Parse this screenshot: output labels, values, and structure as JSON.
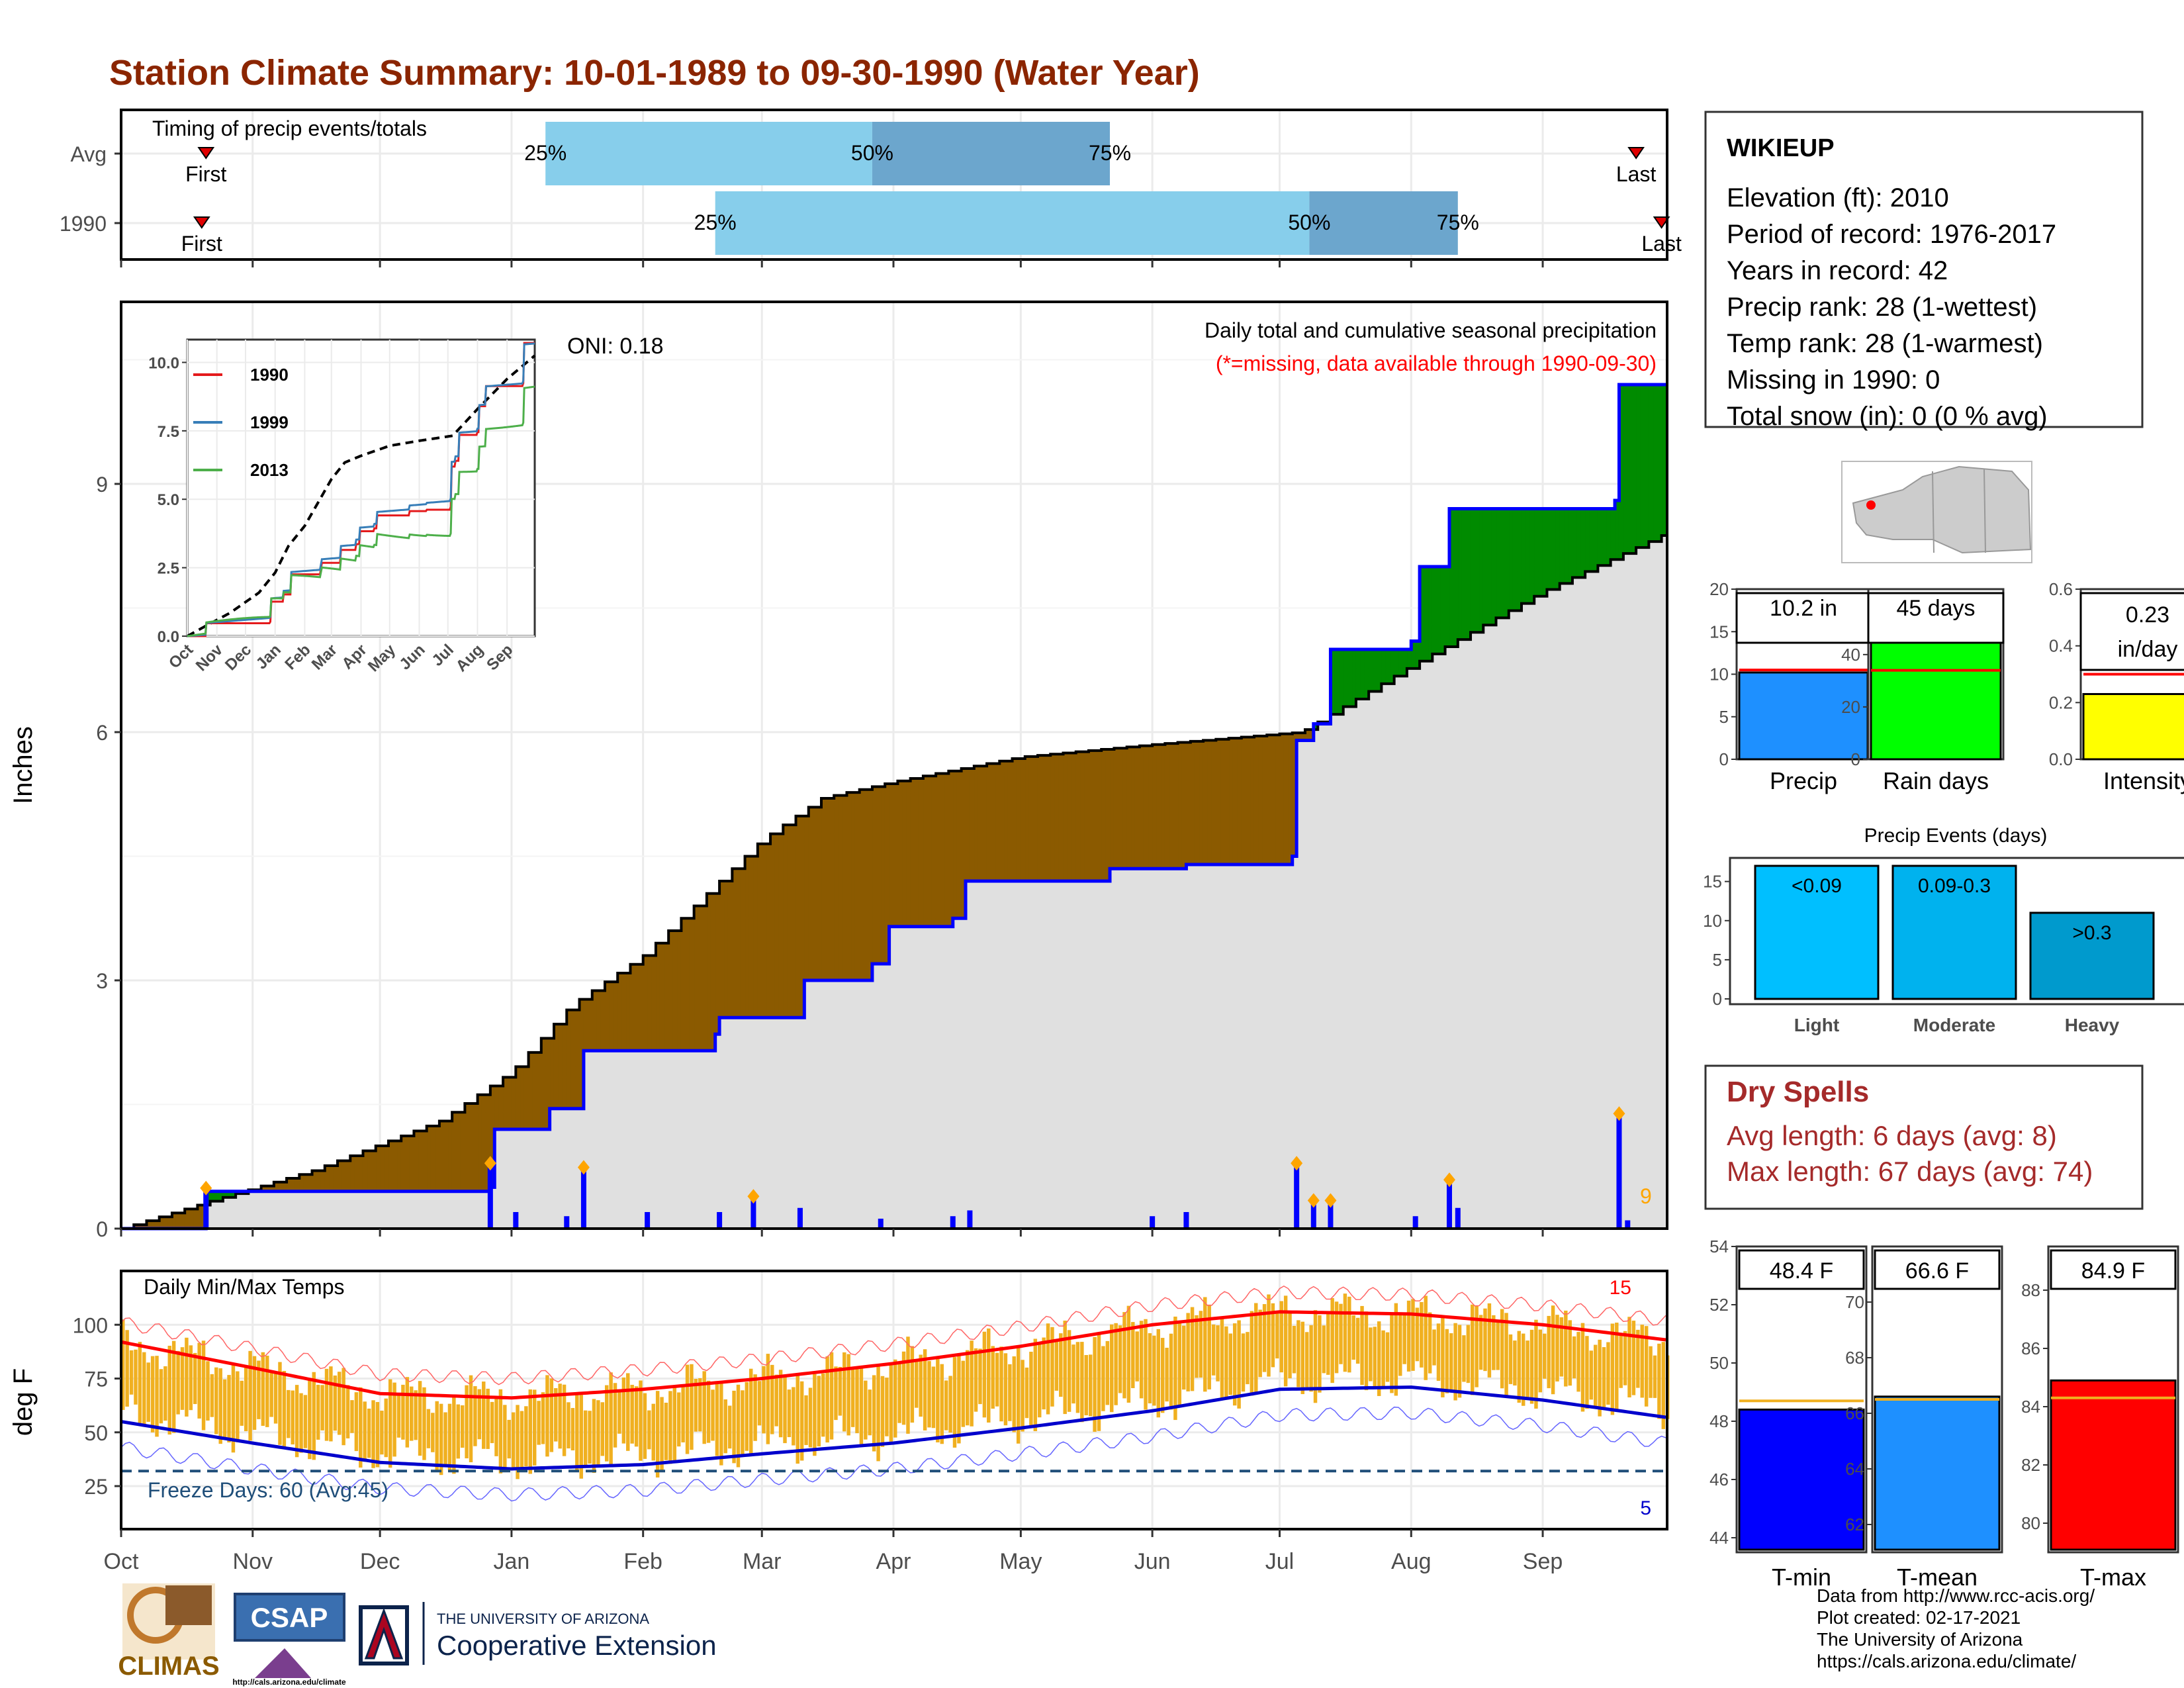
{
  "title": "Station Climate Summary: 10-01-1989 to 09-30-1990 (Water Year)",
  "colors": {
    "title": "#8B2500",
    "deficit": "#8B5A00",
    "surplus": "#008B00",
    "avg_fill": "#E0E0E0",
    "precip_line": "#0000FF",
    "temp_bar": "#F0B020",
    "tmax": "#FF0000",
    "tmin": "#0000CC",
    "light_blue": "#87CEEB",
    "mid_blue": "#6CA6CD",
    "dry_spell": "#A52A2A"
  },
  "timing": {
    "title": "Timing of precip events/totals",
    "rows": [
      {
        "label": "Avg",
        "first_label": "First",
        "last_label": "Last",
        "first_date": "1989-10-21",
        "last_date": "1990-09-23",
        "p25_label": "25%",
        "p50_label": "50%",
        "p75_label": "75%",
        "p25_date": "1990-01-09",
        "p50_date": "1990-03-27",
        "p75_date": "1990-05-22"
      },
      {
        "label": "1990",
        "first_label": "First",
        "last_label": "Last",
        "first_date": "1989-10-20",
        "last_date": "1990-09-29",
        "p25_date": "1990-02-18",
        "p50_date": "1990-07-08",
        "p75_date": "1990-08-12",
        "p25_label": "25%",
        "p50_label": "50%",
        "p75_label": "75%"
      }
    ]
  },
  "station": {
    "name": "WIKIEUP",
    "lines": [
      "Elevation (ft): 2010",
      "Period of record: 1976-2017",
      "Years in record: 42",
      "Precip rank: 28 (1-wettest)",
      "Temp rank: 28 (1-warmest)",
      "Missing in 1990: 0",
      "Total snow (in): 0 (0 % avg)"
    ]
  },
  "precip_panel": {
    "ylabel": "Inches",
    "oni": "ONI: 0.18",
    "legend_title": "Daily total and cumulative seasonal precipitation",
    "legend_note": "(*=missing, data available through 1990-09-30)",
    "count_label": "9",
    "yticks": [
      "0",
      "3",
      "6",
      "9"
    ]
  },
  "inset": {
    "yticks": [
      "0.0",
      "2.5",
      "5.0",
      "7.5",
      "10.0"
    ],
    "xticks": [
      "Oct",
      "Nov",
      "Dec",
      "Jan",
      "Feb",
      "Mar",
      "Apr",
      "May",
      "Jun",
      "Jul",
      "Aug",
      "Sep"
    ],
    "legend": [
      {
        "name": "1990",
        "color": "#E41A1C"
      },
      {
        "name": "1999",
        "color": "#377EB8"
      },
      {
        "name": "2013",
        "color": "#4DAF4A"
      }
    ]
  },
  "summary_bars": [
    {
      "label": "Precip",
      "value_label": "10.2 in",
      "value": 10.2,
      "avg": 10.5,
      "ymax": 20,
      "yticks": [
        "0",
        "5",
        "10",
        "15",
        "20"
      ],
      "color": "#1E90FF"
    },
    {
      "label": "Rain days",
      "value_label": "45 days",
      "value": 45,
      "avg": 34,
      "ymax": 65,
      "yticks": [
        "0",
        "20",
        "40",
        "60"
      ],
      "color": "#00FF00"
    },
    {
      "label": "Intensity",
      "value_label_1": "0.23",
      "value_label_2": "in/day",
      "value": 0.23,
      "avg": 0.3,
      "ymax": 0.6,
      "yticks": [
        "0.0",
        "0.2",
        "0.4",
        "0.6"
      ],
      "color": "#FFFF00"
    }
  ],
  "events": {
    "title": "Precip Events (days)",
    "yticks": [
      "0",
      "5",
      "10",
      "15"
    ],
    "bars": [
      {
        "label": "Light",
        "range": "<0.09",
        "value": 17,
        "color": "#00BFFF"
      },
      {
        "label": "Moderate",
        "range": "0.09-0.3",
        "value": 17,
        "color": "#00B2EE"
      },
      {
        "label": "Heavy",
        "range": ">0.3",
        "value": 11,
        "color": "#009ACD"
      }
    ]
  },
  "dry_spells": {
    "title": "Dry Spells",
    "avg": "Avg length: 6 days (avg: 8)",
    "max": "Max length: 67 days (avg: 74)"
  },
  "temp_panel": {
    "title": "Daily Min/Max Temps",
    "ylabel": "deg F",
    "freeze": "Freeze Days: 60 (Avg:45)",
    "hot_count": "15",
    "cold_count": "5",
    "yticks": [
      "25",
      "50",
      "75",
      "100"
    ],
    "months": [
      "Oct",
      "Nov",
      "Dec",
      "Jan",
      "Feb",
      "Mar",
      "Apr",
      "May",
      "Jun",
      "Jul",
      "Aug",
      "Sep"
    ]
  },
  "temp_bars": [
    {
      "label": "T-min",
      "value_label": "48.4 F",
      "value": 48.4,
      "avg": 48.7,
      "ymin": 43.5,
      "ymax": 54,
      "yticks": [
        "44",
        "46",
        "48",
        "50",
        "52",
        "54"
      ],
      "color": "#0000FF"
    },
    {
      "label": "T-mean",
      "value_label": "66.6 F",
      "value": 66.6,
      "avg": 66.5,
      "ymin": 61,
      "ymax": 72,
      "yticks": [
        "62",
        "64",
        "66",
        "68",
        "70"
      ],
      "color": "#1E90FF"
    },
    {
      "label": "T-max",
      "value_label": "84.9 F",
      "value": 84.9,
      "avg": 84.3,
      "ymin": 79,
      "ymax": 89.5,
      "yticks": [
        "80",
        "82",
        "84",
        "86",
        "88"
      ],
      "color": "#FF0000"
    }
  ],
  "footer": {
    "source": "Data from http://www.rcc-acis.org/",
    "created": "Plot created: 02-17-2021",
    "univ": "The University of Arizona",
    "url": "https://cals.arizona.edu/climate/",
    "climas": "CLIMAS",
    "csap": "CSAP",
    "csap_url": "http://cals.arizona.edu/climate",
    "ua_small": "THE UNIVERSITY OF ARIZONA",
    "coop": "Cooperative Extension"
  },
  "chart_data": [
    {
      "type": "area",
      "title": "Daily total and cumulative seasonal precipitation",
      "ylabel": "Inches",
      "ylim": [
        0,
        11.2
      ],
      "x_range": [
        "1989-10-01",
        "1990-09-30"
      ],
      "series": [
        {
          "name": "1990",
          "points": [
            [
              "1989-10-01",
              0
            ],
            [
              "1989-10-21",
              0.45
            ],
            [
              "1989-12-27",
              0.5
            ],
            [
              "1989-12-28",
              1.2
            ],
            [
              "1990-01-10",
              1.45
            ],
            [
              "1990-01-18",
              2.15
            ],
            [
              "1990-02-18",
              2.35
            ],
            [
              "1990-02-19",
              2.55
            ],
            [
              "1990-03-10",
              2.55
            ],
            [
              "1990-03-11",
              3.0
            ],
            [
              "1990-03-27",
              3.2
            ],
            [
              "1990-03-31",
              3.65
            ],
            [
              "1990-04-15",
              3.75
            ],
            [
              "1990-04-18",
              4.2
            ],
            [
              "1990-05-22",
              4.35
            ],
            [
              "1990-06-09",
              4.4
            ],
            [
              "1990-07-04",
              4.5
            ],
            [
              "1990-07-05",
              5.9
            ],
            [
              "1990-07-09",
              6.1
            ],
            [
              "1990-07-13",
              7.0
            ],
            [
              "1990-08-01",
              7.1
            ],
            [
              "1990-08-03",
              8.0
            ],
            [
              "1990-08-10",
              8.7
            ],
            [
              "1990-09-18",
              8.8
            ],
            [
              "1990-09-19",
              10.2
            ],
            [
              "1990-09-30",
              10.2
            ]
          ]
        },
        {
          "name": "Average",
          "points": [
            [
              "1989-10-01",
              0
            ],
            [
              "1989-10-20",
              0.3
            ],
            [
              "1989-11-15",
              0.7
            ],
            [
              "1989-12-15",
              1.3
            ],
            [
              "1990-01-01",
              1.9
            ],
            [
              "1990-01-15",
              2.7
            ],
            [
              "1990-02-01",
              3.3
            ],
            [
              "1990-03-01",
              4.7
            ],
            [
              "1990-03-15",
              5.2
            ],
            [
              "1990-04-01",
              5.4
            ],
            [
              "1990-05-01",
              5.7
            ],
            [
              "1990-06-01",
              5.85
            ],
            [
              "1990-07-06",
              6.0
            ],
            [
              "1990-08-01",
              6.8
            ],
            [
              "1990-09-01",
              7.7
            ],
            [
              "1990-09-30",
              8.4
            ]
          ]
        }
      ],
      "daily": [
        [
          "1989-10-21",
          0.45
        ],
        [
          "1989-12-27",
          0.75
        ],
        [
          "1990-01-02",
          0.2
        ],
        [
          "1990-01-14",
          0.15
        ],
        [
          "1990-01-18",
          0.7
        ],
        [
          "1990-02-02",
          0.2
        ],
        [
          "1990-02-19",
          0.2
        ],
        [
          "1990-02-27",
          0.35
        ],
        [
          "1990-03-10",
          0.25
        ],
        [
          "1990-03-29",
          0.12
        ],
        [
          "1990-04-15",
          0.15
        ],
        [
          "1990-04-19",
          0.22
        ],
        [
          "1990-06-01",
          0.15
        ],
        [
          "1990-06-09",
          0.2
        ],
        [
          "1990-07-05",
          0.75
        ],
        [
          "1990-07-09",
          0.3
        ],
        [
          "1990-07-13",
          0.3
        ],
        [
          "1990-08-02",
          0.15
        ],
        [
          "1990-08-10",
          0.55
        ],
        [
          "1990-08-12",
          0.25
        ],
        [
          "1990-09-19",
          1.35
        ],
        [
          "1990-09-21",
          0.1
        ]
      ]
    },
    {
      "type": "line",
      "title": "Daily Min/Max Temps",
      "ylabel": "deg F",
      "ylim": [
        5,
        125
      ],
      "series": [
        {
          "name": "avg max",
          "points": [
            [
              "1989-10-01",
              92
            ],
            [
              "1989-11-01",
              80
            ],
            [
              "1989-12-01",
              68
            ],
            [
              "1990-01-01",
              66
            ],
            [
              "1990-02-01",
              70
            ],
            [
              "1990-03-01",
              75
            ],
            [
              "1990-04-01",
              82
            ],
            [
              "1990-05-01",
              90
            ],
            [
              "1990-06-01",
              100
            ],
            [
              "1990-07-01",
              106
            ],
            [
              "1990-08-01",
              105
            ],
            [
              "1990-09-01",
              100
            ],
            [
              "1990-09-30",
              93
            ]
          ]
        },
        {
          "name": "avg min",
          "points": [
            [
              "1989-10-01",
              55
            ],
            [
              "1989-11-01",
              45
            ],
            [
              "1989-12-01",
              36
            ],
            [
              "1990-01-01",
              33
            ],
            [
              "1990-02-01",
              35
            ],
            [
              "1990-03-01",
              40
            ],
            [
              "1990-04-01",
              45
            ],
            [
              "1990-05-01",
              52
            ],
            [
              "1990-06-01",
              60
            ],
            [
              "1990-07-01",
              70
            ],
            [
              "1990-08-01",
              71
            ],
            [
              "1990-09-01",
              65
            ],
            [
              "1990-09-30",
              57
            ]
          ]
        }
      ]
    }
  ]
}
